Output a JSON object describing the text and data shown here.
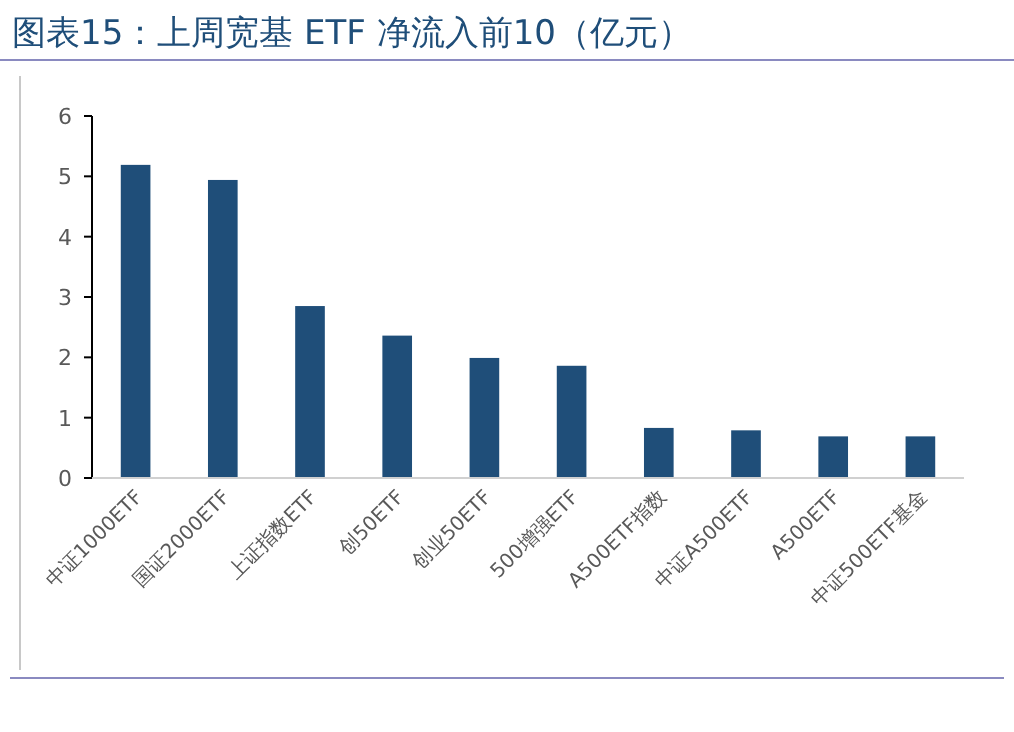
{
  "chart_data": {
    "type": "bar",
    "title": "图表15：上周宽基 ETF 净流入前10（亿元）",
    "categories": [
      "中证1000ETF",
      "国证2000ETF",
      "上证指数ETF",
      "创50ETF",
      "创业50ETF",
      "500增强ETF",
      "A500ETF指数",
      "中证A500ETF",
      "A500ETF",
      "中证500ETF基金"
    ],
    "values": [
      5.19,
      4.94,
      2.85,
      2.36,
      1.99,
      1.86,
      0.83,
      0.79,
      0.69,
      0.69
    ],
    "color": "#1f4e79",
    "ylim": [
      0,
      6
    ],
    "yticks": [
      0,
      1,
      2,
      3,
      4,
      5,
      6
    ]
  }
}
